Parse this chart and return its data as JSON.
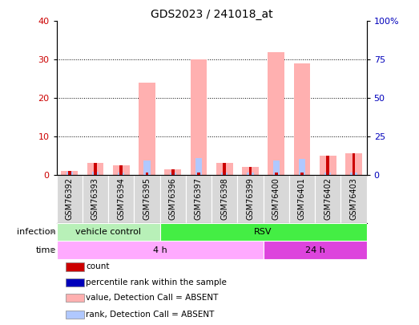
{
  "title": "GDS2023 / 241018_at",
  "samples": [
    "GSM76392",
    "GSM76393",
    "GSM76394",
    "GSM76395",
    "GSM76396",
    "GSM76397",
    "GSM76398",
    "GSM76399",
    "GSM76400",
    "GSM76401",
    "GSM76402",
    "GSM76403"
  ],
  "pink_bar_values": [
    1.0,
    3.0,
    2.5,
    24.0,
    1.5,
    30.0,
    3.0,
    2.0,
    32.0,
    29.0,
    5.0,
    5.5
  ],
  "blue_bar_values": [
    2.0,
    2.0,
    1.5,
    9.5,
    1.5,
    11.0,
    1.5,
    1.5,
    9.5,
    10.5,
    1.5,
    1.5
  ],
  "count_values": [
    1.0,
    3.0,
    2.5,
    0.5,
    1.5,
    0.5,
    3.0,
    2.0,
    0.5,
    0.5,
    5.0,
    5.5
  ],
  "ylim_left": [
    0,
    40
  ],
  "ylim_right": [
    0,
    100
  ],
  "yticks_left": [
    0,
    10,
    20,
    30,
    40
  ],
  "ytick_labels_right": [
    "0",
    "25",
    "50",
    "75",
    "100%"
  ],
  "color_count": "#cc0000",
  "color_rank": "#0000bb",
  "color_pink": "#ffb0b0",
  "color_blue": "#b0c8ff",
  "color_vc_light": "#b8f0b8",
  "color_vc_dark": "#44cc44",
  "color_rsv": "#44cc44",
  "color_4h": "#ffaaff",
  "color_24h": "#cc44cc",
  "color_sample_bg": "#d8d8d8",
  "infection_labels": [
    {
      "label": "vehicle control",
      "start": 0,
      "end": 4,
      "color": "#b8f0b8"
    },
    {
      "label": "RSV",
      "start": 4,
      "end": 12,
      "color": "#44ee44"
    }
  ],
  "time_labels": [
    {
      "label": "4 h",
      "start": 0,
      "end": 8,
      "color": "#ffaaff"
    },
    {
      "label": "24 h",
      "start": 8,
      "end": 12,
      "color": "#dd44dd"
    }
  ],
  "legend_items": [
    {
      "color": "#cc0000",
      "label": "count"
    },
    {
      "color": "#0000bb",
      "label": "percentile rank within the sample"
    },
    {
      "color": "#ffb0b0",
      "label": "value, Detection Call = ABSENT"
    },
    {
      "color": "#b0c8ff",
      "label": "rank, Detection Call = ABSENT"
    }
  ],
  "background_color": "#ffffff",
  "grid_color": "#000000"
}
